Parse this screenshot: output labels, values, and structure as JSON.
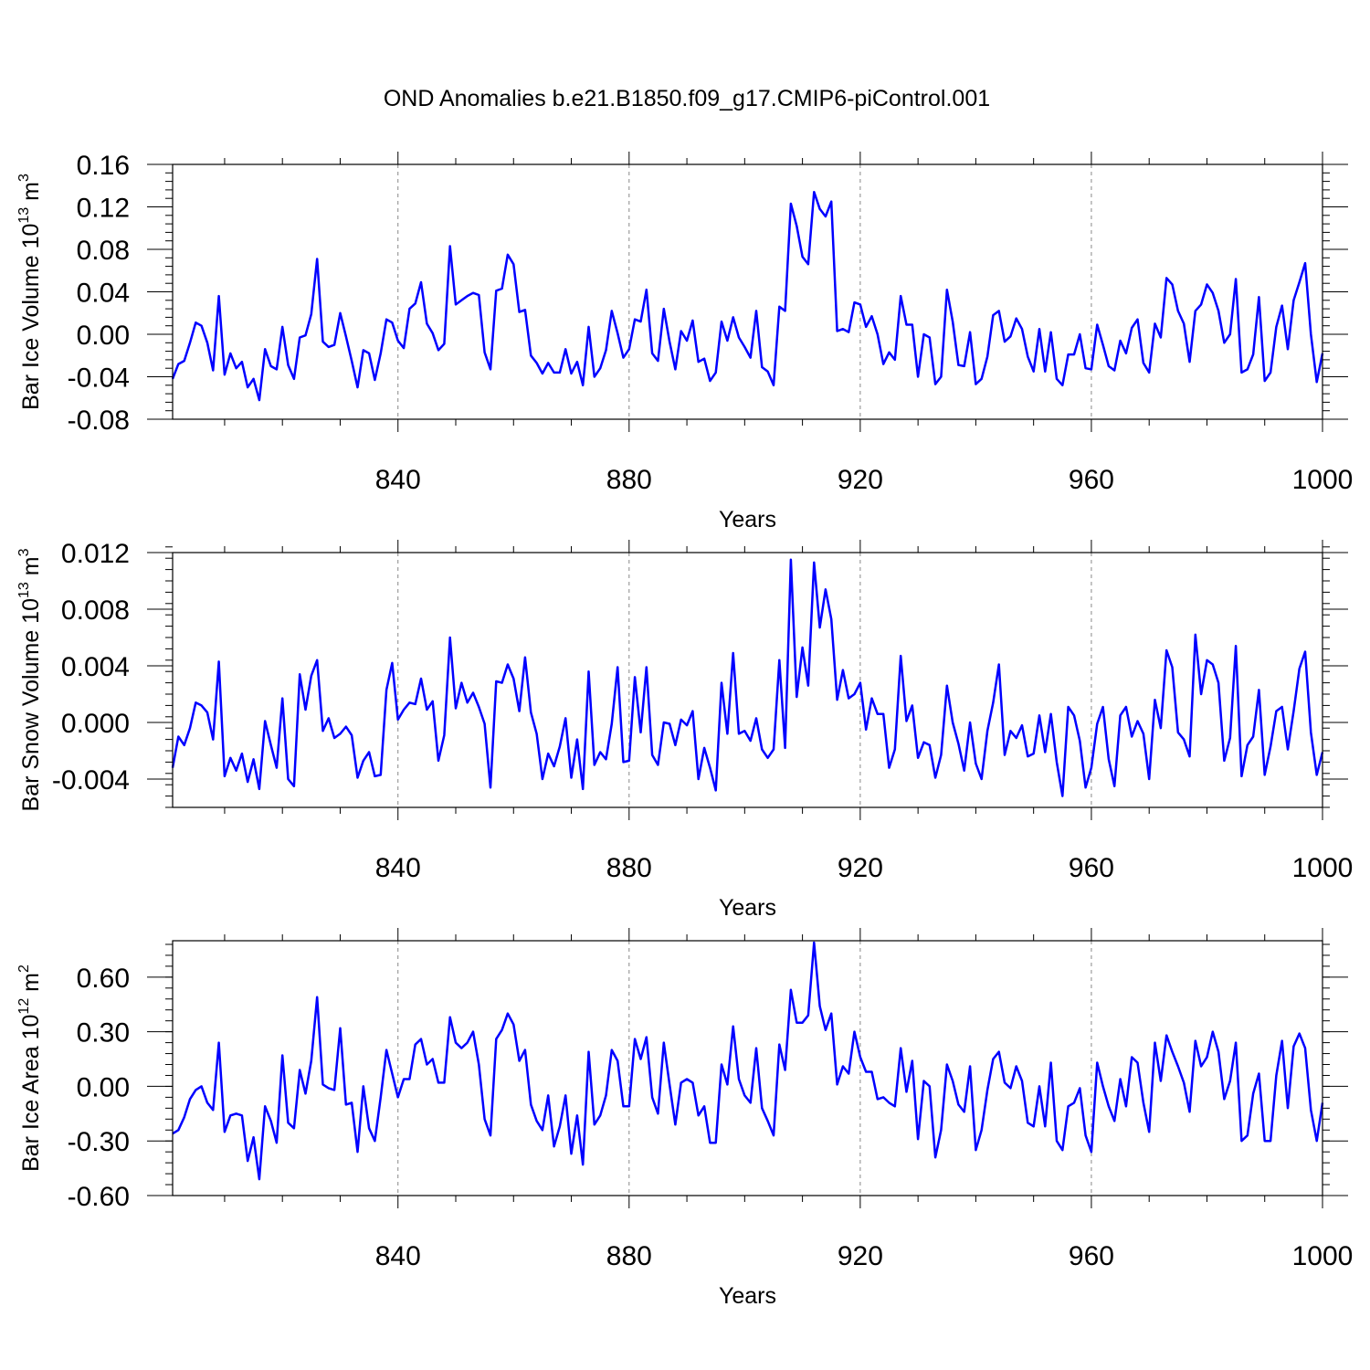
{
  "title": "OND Anomalies b.e21.B1850.f09_g17.CMIP6-piControl.001",
  "colors": {
    "line": "#0000ff",
    "axis": "#000000",
    "grid": "#888888"
  },
  "chart_data": [
    {
      "type": "line",
      "name": "ice-volume",
      "ylabel_base": "Bar Ice Volume 10",
      "ylabel_exp": "13",
      "ylabel_unit": " m",
      "ylabel_unit_exp": "3",
      "xlabel": "Years",
      "xlim": [
        801,
        1000
      ],
      "ylim": [
        -0.08,
        0.16
      ],
      "xticks": [
        840,
        880,
        920,
        960,
        1000
      ],
      "xtick_labels": [
        "840",
        "880",
        "920",
        "960",
        "1000"
      ],
      "yticks": [
        -0.08,
        -0.04,
        0.0,
        0.04,
        0.08,
        0.12,
        0.16
      ],
      "ytick_labels": [
        "-0.08",
        "-0.04",
        "0.00",
        "0.04",
        "0.08",
        "0.12",
        "0.16"
      ],
      "yminor_step": 0.008,
      "x_start": 801,
      "values": [
        -0.042,
        -0.028,
        -0.025,
        -0.008,
        0.011,
        0.008,
        -0.008,
        -0.034,
        0.036,
        -0.038,
        -0.018,
        -0.032,
        -0.026,
        -0.05,
        -0.042,
        -0.062,
        -0.014,
        -0.03,
        -0.033,
        0.007,
        -0.029,
        -0.042,
        -0.003,
        -0.001,
        0.019,
        0.071,
        -0.007,
        -0.012,
        -0.01,
        0.02,
        -0.002,
        -0.025,
        -0.05,
        -0.015,
        -0.018,
        -0.043,
        -0.018,
        0.014,
        0.011,
        -0.006,
        -0.013,
        0.024,
        0.029,
        0.049,
        0.01,
        0.001,
        -0.015,
        -0.009,
        0.083,
        0.028,
        0.032,
        0.036,
        0.039,
        0.037,
        -0.017,
        -0.033,
        0.041,
        0.043,
        0.075,
        0.066,
        0.021,
        0.023,
        -0.02,
        -0.027,
        -0.037,
        -0.027,
        -0.036,
        -0.036,
        -0.014,
        -0.037,
        -0.026,
        -0.048,
        0.007,
        -0.04,
        -0.032,
        -0.015,
        0.022,
        0.001,
        -0.022,
        -0.014,
        0.014,
        0.012,
        0.042,
        -0.018,
        -0.025,
        0.024,
        -0.007,
        -0.033,
        0.003,
        -0.006,
        0.013,
        -0.026,
        -0.023,
        -0.044,
        -0.036,
        0.012,
        -0.006,
        0.016,
        -0.003,
        -0.012,
        -0.022,
        0.022,
        -0.031,
        -0.035,
        -0.048,
        0.026,
        0.022,
        0.123,
        0.102,
        0.073,
        0.066,
        0.134,
        0.118,
        0.111,
        0.125,
        0.003,
        0.005,
        0.002,
        0.03,
        0.028,
        0.007,
        0.017,
        0.0,
        -0.028,
        -0.017,
        -0.024,
        0.036,
        0.009,
        0.009,
        -0.04,
        0.0,
        -0.003,
        -0.047,
        -0.04,
        0.042,
        0.012,
        -0.029,
        -0.03,
        0.002,
        -0.047,
        -0.042,
        -0.021,
        0.018,
        0.022,
        -0.007,
        -0.002,
        0.015,
        0.005,
        -0.021,
        -0.035,
        0.005,
        -0.035,
        0.002,
        -0.042,
        -0.048,
        -0.019,
        -0.019,
        0.0,
        -0.032,
        -0.033,
        0.009,
        -0.01,
        -0.03,
        -0.034,
        -0.006,
        -0.018,
        0.006,
        0.014,
        -0.027,
        -0.036,
        0.01,
        -0.003,
        0.053,
        0.047,
        0.022,
        0.01,
        -0.026,
        0.022,
        0.028,
        0.047,
        0.039,
        0.022,
        -0.008,
        0.0,
        0.052,
        -0.036,
        -0.033,
        -0.019,
        0.035,
        -0.044,
        -0.036,
        0.007,
        0.027,
        -0.014,
        0.032,
        0.049,
        0.067,
        0.0,
        -0.045,
        -0.018
      ]
    },
    {
      "type": "line",
      "name": "snow-volume",
      "ylabel_base": "Bar Snow Volume 10",
      "ylabel_exp": "13",
      "ylabel_unit": " m",
      "ylabel_unit_exp": "3",
      "xlabel": "Years",
      "xlim": [
        801,
        1000
      ],
      "ylim": [
        -0.006,
        0.012
      ],
      "xticks": [
        840,
        880,
        920,
        960,
        1000
      ],
      "xtick_labels": [
        "840",
        "880",
        "920",
        "960",
        "1000"
      ],
      "yticks": [
        -0.004,
        0.0,
        0.004,
        0.008,
        0.012
      ],
      "ytick_labels": [
        "-0.004",
        "0.000",
        "0.004",
        "0.008",
        "0.012"
      ],
      "yminor_step": 0.0008,
      "x_start": 801,
      "values": [
        -0.0032,
        -0.001,
        -0.0016,
        -0.0004,
        0.0014,
        0.0012,
        0.0007,
        -0.0012,
        0.0043,
        -0.0038,
        -0.0025,
        -0.0034,
        -0.0022,
        -0.0042,
        -0.0026,
        -0.0047,
        0.0001,
        -0.0016,
        -0.0032,
        0.0017,
        -0.004,
        -0.0045,
        0.0034,
        0.0009,
        0.0033,
        0.0044,
        -0.0006,
        0.0003,
        -0.0011,
        -0.0008,
        -0.0003,
        -0.0009,
        -0.0039,
        -0.0027,
        -0.0021,
        -0.0038,
        -0.0037,
        0.0023,
        0.0042,
        0.0002,
        0.0009,
        0.0014,
        0.0013,
        0.0031,
        0.0009,
        0.0015,
        -0.0027,
        -0.0009,
        0.006,
        0.001,
        0.0028,
        0.0014,
        0.0021,
        0.0011,
        -0.0001,
        -0.0046,
        0.0029,
        0.0028,
        0.0041,
        0.0031,
        0.0008,
        0.0046,
        0.0007,
        -0.0008,
        -0.004,
        -0.0022,
        -0.0031,
        -0.0017,
        0.0003,
        -0.0039,
        -0.0012,
        -0.0047,
        0.0036,
        -0.003,
        -0.0021,
        -0.0026,
        -0.0001,
        0.0039,
        -0.0028,
        -0.0027,
        0.0032,
        -0.0007,
        0.0039,
        -0.0023,
        -0.003,
        0.0,
        -0.0001,
        -0.0016,
        0.0002,
        -0.0002,
        0.0008,
        -0.004,
        -0.0018,
        -0.0032,
        -0.0048,
        0.0028,
        -0.0008,
        0.0049,
        -0.0008,
        -0.0006,
        -0.0013,
        0.0003,
        -0.0019,
        -0.0025,
        -0.0019,
        0.0044,
        -0.0018,
        0.0115,
        0.0018,
        0.0053,
        0.0026,
        0.0113,
        0.0067,
        0.0094,
        0.0073,
        0.0016,
        0.0037,
        0.0017,
        0.002,
        0.0028,
        -0.0005,
        0.0017,
        0.0006,
        0.0006,
        -0.0032,
        -0.0019,
        0.0047,
        0.0001,
        0.0012,
        -0.0025,
        -0.0014,
        -0.0016,
        -0.0039,
        -0.0023,
        0.0026,
        0.0,
        -0.0015,
        -0.0034,
        0.0,
        -0.0029,
        -0.004,
        -0.0006,
        0.0014,
        0.0041,
        -0.0023,
        -0.0006,
        -0.0011,
        -0.0002,
        -0.0024,
        -0.0022,
        0.0005,
        -0.0021,
        0.0006,
        -0.0028,
        -0.0052,
        0.0011,
        0.0005,
        -0.0013,
        -0.0046,
        -0.0032,
        -0.0001,
        0.0011,
        -0.0026,
        -0.0045,
        0.0005,
        0.0011,
        -0.001,
        0.0001,
        -0.0008,
        -0.004,
        0.0016,
        -0.0004,
        0.0051,
        0.0039,
        -0.0007,
        -0.0012,
        -0.0024,
        0.0062,
        0.002,
        0.0044,
        0.0041,
        0.0028,
        -0.0027,
        -0.0011,
        0.0054,
        -0.0038,
        -0.0016,
        -0.001,
        0.0023,
        -0.0037,
        -0.0017,
        0.0008,
        0.0011,
        -0.0019,
        0.0008,
        0.0038,
        0.005,
        -0.0007,
        -0.0037,
        -0.0021
      ]
    },
    {
      "type": "line",
      "name": "ice-area",
      "ylabel_base": "Bar Ice Area 10",
      "ylabel_exp": "12",
      "ylabel_unit": " m",
      "ylabel_unit_exp": "2",
      "xlabel": "Years",
      "xlim": [
        801,
        1000
      ],
      "ylim": [
        -0.6,
        0.8
      ],
      "xticks": [
        840,
        880,
        920,
        960,
        1000
      ],
      "xtick_labels": [
        "840",
        "880",
        "920",
        "960",
        "1000"
      ],
      "yticks": [
        -0.6,
        -0.3,
        0.0,
        0.3,
        0.6
      ],
      "ytick_labels": [
        "-0.60",
        "-0.30",
        "0.00",
        "0.30",
        "0.60"
      ],
      "yminor_step": 0.06,
      "x_start": 801,
      "values": [
        -0.26,
        -0.24,
        -0.17,
        -0.07,
        -0.02,
        0.0,
        -0.09,
        -0.13,
        0.24,
        -0.25,
        -0.16,
        -0.15,
        -0.16,
        -0.41,
        -0.28,
        -0.51,
        -0.11,
        -0.19,
        -0.31,
        0.17,
        -0.2,
        -0.23,
        0.09,
        -0.04,
        0.14,
        0.49,
        0.01,
        -0.01,
        -0.02,
        0.32,
        -0.1,
        -0.09,
        -0.36,
        0.0,
        -0.23,
        -0.3,
        -0.06,
        0.2,
        0.07,
        -0.06,
        0.04,
        0.04,
        0.23,
        0.26,
        0.12,
        0.15,
        0.02,
        0.02,
        0.38,
        0.24,
        0.21,
        0.24,
        0.3,
        0.12,
        -0.18,
        -0.27,
        0.26,
        0.31,
        0.4,
        0.34,
        0.14,
        0.2,
        -0.1,
        -0.19,
        -0.24,
        -0.05,
        -0.33,
        -0.22,
        -0.05,
        -0.37,
        -0.16,
        -0.43,
        0.19,
        -0.21,
        -0.16,
        -0.05,
        0.2,
        0.14,
        -0.11,
        -0.11,
        0.26,
        0.15,
        0.27,
        -0.06,
        -0.15,
        0.24,
        0.01,
        -0.21,
        0.02,
        0.04,
        0.02,
        -0.16,
        -0.11,
        -0.31,
        -0.31,
        0.12,
        0.01,
        0.33,
        0.04,
        -0.05,
        -0.09,
        0.21,
        -0.12,
        -0.19,
        -0.27,
        0.23,
        0.09,
        0.53,
        0.35,
        0.35,
        0.39,
        0.79,
        0.44,
        0.31,
        0.4,
        0.01,
        0.11,
        0.07,
        0.3,
        0.16,
        0.08,
        0.08,
        -0.07,
        -0.06,
        -0.09,
        -0.11,
        0.21,
        -0.03,
        0.14,
        -0.29,
        0.03,
        0.0,
        -0.39,
        -0.24,
        0.12,
        0.03,
        -0.1,
        -0.14,
        0.11,
        -0.35,
        -0.24,
        -0.02,
        0.15,
        0.19,
        0.02,
        -0.01,
        0.11,
        0.03,
        -0.2,
        -0.22,
        0.0,
        -0.22,
        0.13,
        -0.3,
        -0.35,
        -0.11,
        -0.09,
        -0.01,
        -0.27,
        -0.36,
        0.13,
        0.0,
        -0.11,
        -0.19,
        0.04,
        -0.11,
        0.16,
        0.13,
        -0.09,
        -0.25,
        0.24,
        0.03,
        0.28,
        0.19,
        0.11,
        0.02,
        -0.14,
        0.25,
        0.11,
        0.16,
        0.3,
        0.19,
        -0.07,
        0.03,
        0.24,
        -0.3,
        -0.27,
        -0.04,
        0.07,
        -0.3,
        -0.3,
        0.06,
        0.25,
        -0.12,
        0.22,
        0.29,
        0.21,
        -0.13,
        -0.3,
        -0.09
      ]
    }
  ]
}
